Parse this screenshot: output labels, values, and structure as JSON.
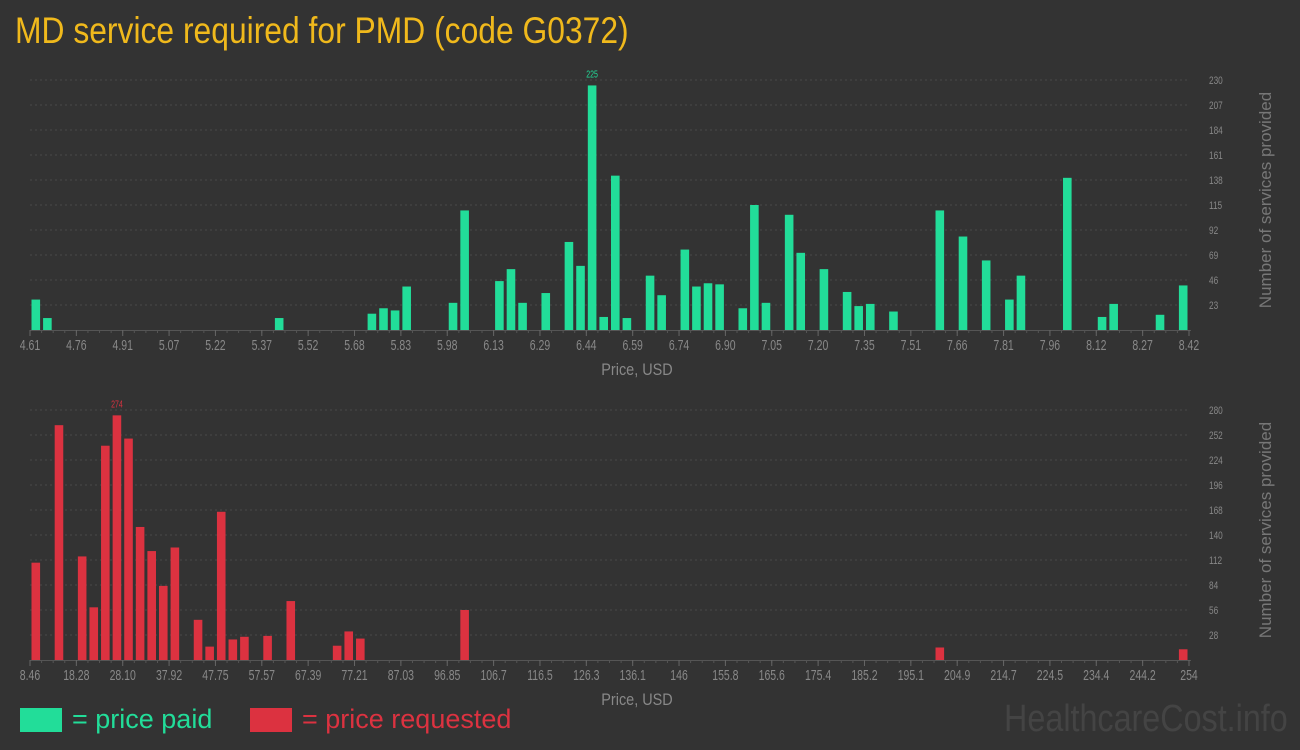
{
  "title": "MD service required for PMD (code G0372)",
  "colors": {
    "background": "#333333",
    "paid": "#22dd99",
    "requested": "#dc3240",
    "title": "#f0b91c",
    "text": "#888888"
  },
  "legend": {
    "paid_label": "= price paid",
    "requested_label": "= price requested",
    "placement": "bottom-left"
  },
  "watermark": "HealthcareCost.info",
  "chart_data": [
    {
      "type": "bar",
      "series_key": "paid",
      "xlabel": "Price, USD",
      "ylabel": "Number of services provided",
      "xlim": [
        4.61,
        8.42
      ],
      "ylim": [
        0,
        230
      ],
      "grid": true,
      "x_ticks": [
        "4.61",
        "4.76",
        "4.91",
        "5.07",
        "5.22",
        "5.37",
        "5.52",
        "5.68",
        "5.83",
        "5.98",
        "6.13",
        "6.29",
        "6.44",
        "6.59",
        "6.74",
        "6.90",
        "7.05",
        "7.20",
        "7.35",
        "7.51",
        "7.66",
        "7.81",
        "7.96",
        "8.12",
        "8.27",
        "8.42"
      ],
      "y_ticks": [
        23,
        46,
        69,
        92,
        115,
        138,
        161,
        184,
        207,
        230
      ],
      "max_label": "225",
      "bars": [
        {
          "price": 4.61,
          "count": 28
        },
        {
          "price": 4.65,
          "count": 11
        },
        {
          "price": 5.41,
          "count": 11
        },
        {
          "price": 5.71,
          "count": 15
        },
        {
          "price": 5.75,
          "count": 20
        },
        {
          "price": 5.79,
          "count": 18
        },
        {
          "price": 5.83,
          "count": 40
        },
        {
          "price": 5.98,
          "count": 25
        },
        {
          "price": 6.02,
          "count": 110
        },
        {
          "price": 6.13,
          "count": 45
        },
        {
          "price": 6.17,
          "count": 56
        },
        {
          "price": 6.21,
          "count": 25
        },
        {
          "price": 6.29,
          "count": 34
        },
        {
          "price": 6.36,
          "count": 81
        },
        {
          "price": 6.4,
          "count": 59
        },
        {
          "price": 6.44,
          "count": 225
        },
        {
          "price": 6.48,
          "count": 12
        },
        {
          "price": 6.52,
          "count": 142
        },
        {
          "price": 6.55,
          "count": 11
        },
        {
          "price": 6.63,
          "count": 50
        },
        {
          "price": 6.67,
          "count": 32
        },
        {
          "price": 6.74,
          "count": 74
        },
        {
          "price": 6.78,
          "count": 40
        },
        {
          "price": 6.82,
          "count": 43
        },
        {
          "price": 6.86,
          "count": 42
        },
        {
          "price": 6.93,
          "count": 20
        },
        {
          "price": 6.97,
          "count": 115
        },
        {
          "price": 7.01,
          "count": 25
        },
        {
          "price": 7.09,
          "count": 106
        },
        {
          "price": 7.12,
          "count": 71
        },
        {
          "price": 7.2,
          "count": 56
        },
        {
          "price": 7.28,
          "count": 35
        },
        {
          "price": 7.32,
          "count": 22
        },
        {
          "price": 7.35,
          "count": 24
        },
        {
          "price": 7.43,
          "count": 17
        },
        {
          "price": 7.58,
          "count": 110
        },
        {
          "price": 7.66,
          "count": 86
        },
        {
          "price": 7.73,
          "count": 64
        },
        {
          "price": 7.81,
          "count": 28
        },
        {
          "price": 7.85,
          "count": 50
        },
        {
          "price": 8.0,
          "count": 140
        },
        {
          "price": 8.12,
          "count": 12
        },
        {
          "price": 8.15,
          "count": 24
        },
        {
          "price": 8.31,
          "count": 14
        },
        {
          "price": 8.38,
          "count": 41
        }
      ]
    },
    {
      "type": "bar",
      "series_key": "requested",
      "xlabel": "Price, USD",
      "ylabel": "Number of services provided",
      "xlim": [
        8.46,
        254
      ],
      "ylim": [
        0,
        280
      ],
      "grid": true,
      "x_ticks": [
        "8.46",
        "18.28",
        "28.10",
        "37.92",
        "47.75",
        "57.57",
        "67.39",
        "77.21",
        "87.03",
        "96.85",
        "106.7",
        "116.5",
        "126.3",
        "136.1",
        "146",
        "155.8",
        "165.6",
        "175.4",
        "185.2",
        "195.1",
        "204.9",
        "214.7",
        "224.5",
        "234.4",
        "244.2",
        "254"
      ],
      "y_ticks": [
        28,
        56,
        84,
        112,
        140,
        168,
        196,
        224,
        252,
        280
      ],
      "max_label": "274",
      "bars": [
        {
          "price": 8.46,
          "count": 109
        },
        {
          "price": 13.37,
          "count": 263
        },
        {
          "price": 18.28,
          "count": 116
        },
        {
          "price": 20.74,
          "count": 59
        },
        {
          "price": 23.19,
          "count": 240
        },
        {
          "price": 25.65,
          "count": 274
        },
        {
          "price": 28.1,
          "count": 248
        },
        {
          "price": 30.56,
          "count": 149
        },
        {
          "price": 33.01,
          "count": 122
        },
        {
          "price": 35.47,
          "count": 83
        },
        {
          "price": 37.92,
          "count": 126
        },
        {
          "price": 42.84,
          "count": 45
        },
        {
          "price": 45.29,
          "count": 15
        },
        {
          "price": 47.75,
          "count": 166
        },
        {
          "price": 50.2,
          "count": 23
        },
        {
          "price": 52.66,
          "count": 26
        },
        {
          "price": 57.57,
          "count": 27
        },
        {
          "price": 62.48,
          "count": 66
        },
        {
          "price": 72.3,
          "count": 16
        },
        {
          "price": 74.76,
          "count": 32
        },
        {
          "price": 77.21,
          "count": 24
        },
        {
          "price": 99.31,
          "count": 56
        },
        {
          "price": 199.98,
          "count": 14
        },
        {
          "price": 251.55,
          "count": 12
        }
      ]
    }
  ]
}
